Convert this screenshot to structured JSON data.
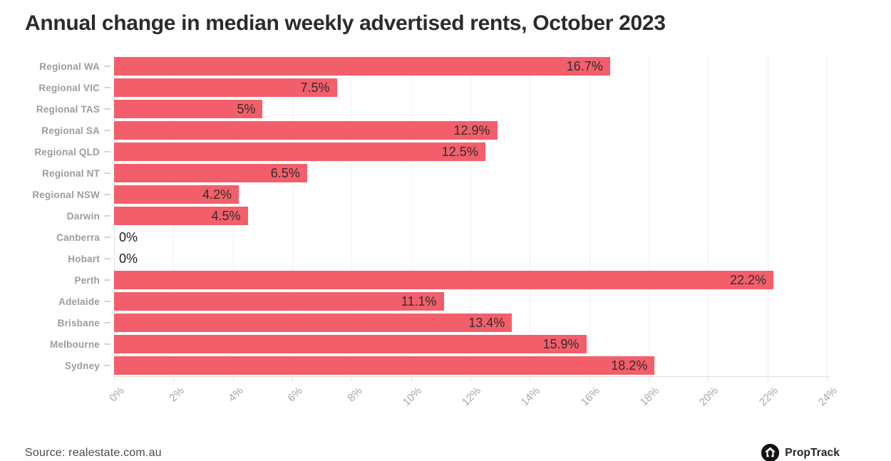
{
  "title": "Annual change in median weekly advertised rents, October 2023",
  "footer": {
    "source": "Source: realestate.com.au",
    "brand": "PropTrack"
  },
  "colors": {
    "bar": "#f25f6b",
    "title": "#2b2b2b",
    "category_label": "#9c9c9c",
    "value_label": "#2e2e2e",
    "axis_tick_label": "#a6a6a6",
    "gridline": "#f0f0f0",
    "zero_line": "#e3e3e3",
    "axis_line": "#dedede"
  },
  "chart_data": {
    "type": "bar",
    "orientation": "horizontal",
    "title": "Annual change in median weekly advertised rents, October 2023",
    "xlabel": "",
    "ylabel": "",
    "xlim": [
      0,
      24
    ],
    "grid": true,
    "legend": false,
    "categories": [
      "Regional WA",
      "Regional VIC",
      "Regional TAS",
      "Regional SA",
      "Regional QLD",
      "Regional NT",
      "Regional NSW",
      "Darwin",
      "Canberra",
      "Hobart",
      "Perth",
      "Adelaide",
      "Brisbane",
      "Melbourne",
      "Sydney"
    ],
    "values": [
      16.7,
      7.5,
      5,
      12.9,
      12.5,
      6.5,
      4.2,
      4.5,
      0,
      0,
      22.2,
      11.1,
      13.4,
      15.9,
      18.2
    ],
    "value_labels": [
      "16.7%",
      "7.5%",
      "5%",
      "12.9%",
      "12.5%",
      "6.5%",
      "4.2%",
      "4.5%",
      "0%",
      "0%",
      "22.2%",
      "11.1%",
      "13.4%",
      "15.9%",
      "18.2%"
    ],
    "x_tick_labels": [
      "0%",
      "2%",
      "4%",
      "6%",
      "8%",
      "10%",
      "12%",
      "14%",
      "16%",
      "18%",
      "20%",
      "22%",
      "24%"
    ],
    "x_tick_values": [
      0,
      2,
      4,
      6,
      8,
      10,
      12,
      14,
      16,
      18,
      20,
      22,
      24
    ]
  }
}
